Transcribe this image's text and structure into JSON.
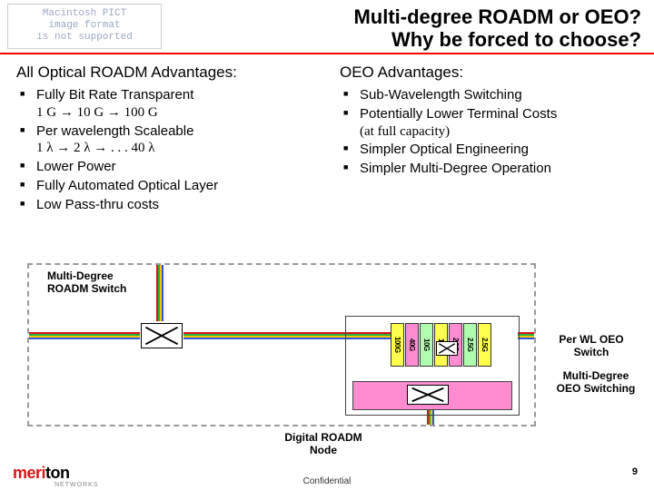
{
  "pict_placeholder": {
    "line1": "Macintosh PICT",
    "line2": "image format",
    "line3": "is not supported",
    "border_color": "#d0d0d0",
    "text_color": "#9aa7c0"
  },
  "title": {
    "line1": "Multi-degree ROADM or OEO?",
    "line2": "Why be forced to choose?",
    "fontsize": 22,
    "underline_color": "#ff0000"
  },
  "left": {
    "heading": "All Optical ROADM Advantages:",
    "items": [
      {
        "main": "Fully Bit Rate Transparent",
        "sub": "1 G → 10 G → 100 G"
      },
      {
        "main": "Per wavelength Scaleable",
        "sub": " 1 λ → 2 λ → . . .  40 λ"
      },
      {
        "main": "Lower Power"
      },
      {
        "main": "Fully Automated Optical Layer"
      },
      {
        "main": "Low Pass-thru costs"
      }
    ]
  },
  "right": {
    "heading": "OEO Advantages:",
    "items": [
      {
        "main": "Sub-Wavelength Switching"
      },
      {
        "main": "Potentially Lower Terminal Costs",
        "sub": "(at full capacity)"
      },
      {
        "main": "Simpler Optical Engineering"
      },
      {
        "main": "Simpler Multi-Degree Operation"
      }
    ]
  },
  "diagram": {
    "border_color": "#9a9a9a",
    "roadm_label": "Multi-Degree\nROADM Switch",
    "digital_label": "Digital ROADM\nNode",
    "perwl_label": "Per WL OEO\nSwitch",
    "mdoeo_label": "Multi-Degree\nOEO Switching",
    "wavelength_colors": [
      "#d91515",
      "#2aae3f",
      "#f5c400",
      "#2a57e0"
    ],
    "oeo_blocks": [
      {
        "label": "100G",
        "bg": "#ffff4d"
      },
      {
        "label": "40G",
        "bg": "#ff8cd1"
      },
      {
        "label": "10G",
        "bg": "#b0ffb0"
      },
      {
        "label": "10G",
        "bg": "#ffff4d"
      },
      {
        "label": "2.5G",
        "bg": "#ff8cd1"
      },
      {
        "label": "2.5G",
        "bg": "#b0ffb0"
      },
      {
        "label": "2.5G",
        "bg": "#ffff4d"
      }
    ],
    "switch_cross_color": "#000000",
    "oeo_pink": "#ff8cd1"
  },
  "footer": {
    "logo_red": "meri",
    "logo_black": "ton",
    "logo_sub": "NETWORKS",
    "confidential": "Confidential",
    "page": "9"
  }
}
